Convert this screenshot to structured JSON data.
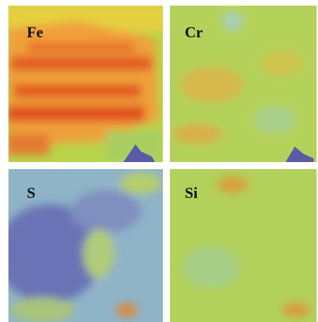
{
  "panels": [
    {
      "label": "Fe"
    },
    {
      "label": "Cr"
    },
    {
      "label": "S"
    },
    {
      "label": "Si"
    }
  ]
}
